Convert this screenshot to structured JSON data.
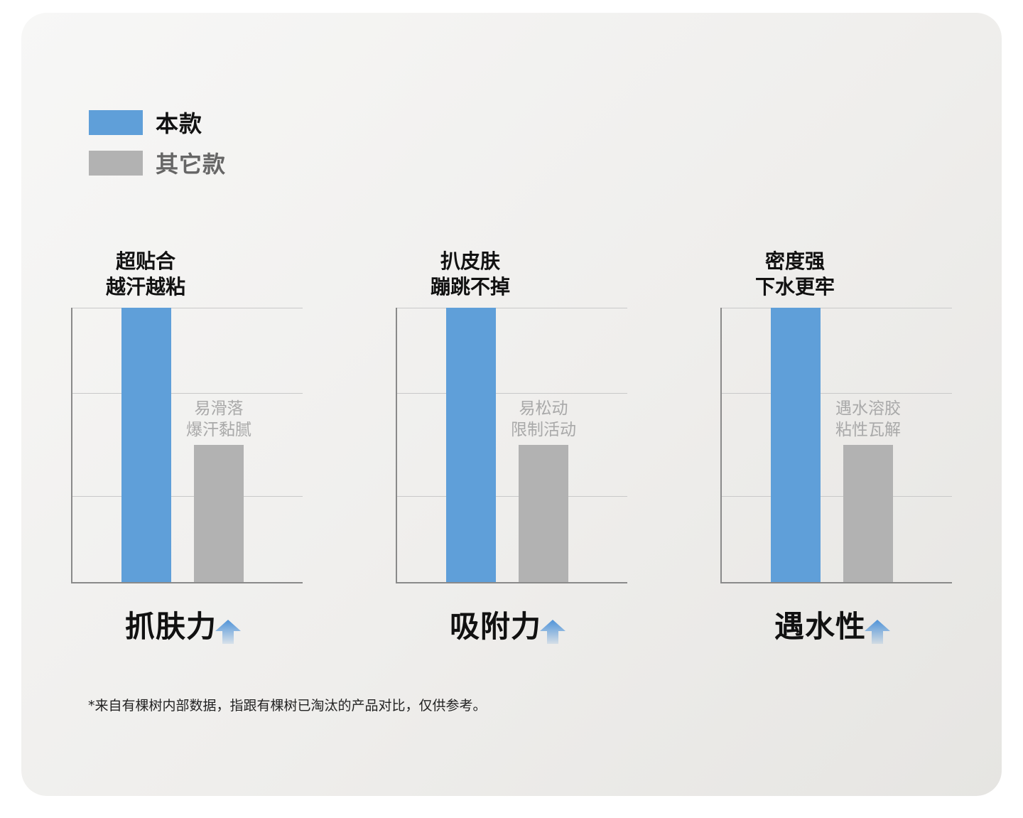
{
  "colors": {
    "this_product": "#5f9fd9",
    "other_products": "#b2b2b2",
    "accent_arrow": "#4f93d8"
  },
  "legend": {
    "this_product": "本款",
    "other_products": "其它款"
  },
  "chart_data": [
    {
      "type": "bar",
      "title_lines": [
        "超贴合",
        "越汗越粘"
      ],
      "xlabel": "抓肤力",
      "ylim": [
        0,
        100
      ],
      "grid": true,
      "categories": [
        "本款",
        "其它款"
      ],
      "values": [
        100,
        50
      ],
      "annotations": {
        "other_lines": [
          "易滑落",
          "爆汗黏腻"
        ]
      }
    },
    {
      "type": "bar",
      "title_lines": [
        "扒皮肤",
        "蹦跳不掉"
      ],
      "xlabel": "吸附力",
      "ylim": [
        0,
        100
      ],
      "grid": true,
      "categories": [
        "本款",
        "其它款"
      ],
      "values": [
        100,
        50
      ],
      "annotations": {
        "other_lines": [
          "易松动",
          "限制活动"
        ]
      }
    },
    {
      "type": "bar",
      "title_lines": [
        "密度强",
        "下水更牢"
      ],
      "xlabel": "遇水性",
      "ylim": [
        0,
        100
      ],
      "grid": true,
      "categories": [
        "本款",
        "其它款"
      ],
      "values": [
        100,
        50
      ],
      "annotations": {
        "other_lines": [
          "遇水溶胶",
          "粘性瓦解"
        ]
      }
    }
  ],
  "footnote": "*来自有棵树内部数据，指跟有棵树已淘汰的产品对比，仅供参考。"
}
